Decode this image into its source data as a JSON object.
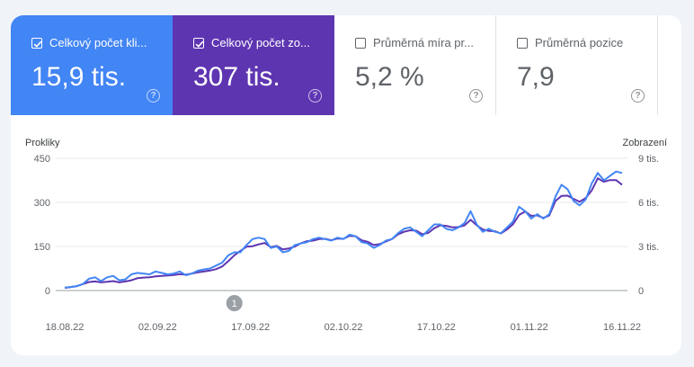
{
  "tiles": [
    {
      "label": "Celkový počet kli...",
      "value": "15,9 tis.",
      "checked": true,
      "color": "#4285f4"
    },
    {
      "label": "Celkový počet zo...",
      "value": "307 tis.",
      "checked": true,
      "color": "#5e35b1"
    },
    {
      "label": "Průměrná míra pr...",
      "value": "5,2 %",
      "checked": false
    },
    {
      "label": "Průměrná pozice",
      "value": "7,9",
      "checked": false
    }
  ],
  "help_glyph": "?",
  "annotation_label": "1",
  "chart_data": {
    "type": "line",
    "left_axis_label": "Prokliky",
    "right_axis_label": "Zobrazení",
    "left_ticks": [
      "450",
      "300",
      "150",
      "0"
    ],
    "right_ticks": [
      "9 tis.",
      "6 tis.",
      "3 tis.",
      "0"
    ],
    "x_tick_labels": [
      "18.08.22",
      "02.09.22",
      "17.09.22",
      "02.10.22",
      "17.10.22",
      "01.11.22",
      "16.11.22"
    ],
    "ylim_left": [
      0,
      450
    ],
    "ylim_right": [
      0,
      9000
    ],
    "grid": true,
    "series": [
      {
        "name": "Celkový počet kliknutí",
        "color": "#4285f4",
        "axis": "left",
        "values": [
          10,
          12,
          15,
          22,
          40,
          45,
          32,
          45,
          50,
          35,
          38,
          55,
          60,
          58,
          55,
          65,
          60,
          55,
          58,
          65,
          52,
          58,
          68,
          72,
          75,
          85,
          95,
          120,
          130,
          130,
          155,
          175,
          180,
          175,
          145,
          150,
          130,
          135,
          155,
          160,
          165,
          175,
          180,
          175,
          170,
          180,
          175,
          190,
          185,
          165,
          160,
          145,
          155,
          170,
          175,
          195,
          210,
          215,
          200,
          185,
          205,
          225,
          225,
          210,
          205,
          215,
          230,
          270,
          225,
          200,
          210,
          200,
          195,
          215,
          235,
          285,
          270,
          245,
          260,
          245,
          260,
          320,
          360,
          345,
          305,
          290,
          310,
          365,
          400,
          375,
          390,
          405,
          400
        ]
      },
      {
        "name": "Celkový počet zobrazení",
        "color": "#5e35b1",
        "axis": "right",
        "values": [
          180,
          240,
          300,
          440,
          580,
          620,
          560,
          600,
          640,
          560,
          620,
          700,
          840,
          880,
          900,
          960,
          1000,
          1020,
          1060,
          1120,
          1080,
          1160,
          1240,
          1300,
          1360,
          1460,
          1640,
          2000,
          2400,
          2700,
          2980,
          3020,
          3140,
          3240,
          2960,
          3040,
          2800,
          2860,
          3000,
          3220,
          3360,
          3400,
          3500,
          3520,
          3420,
          3540,
          3520,
          3720,
          3700,
          3420,
          3320,
          3100,
          3160,
          3340,
          3500,
          3820,
          4000,
          4100,
          4080,
          3840,
          3920,
          4240,
          4440,
          4400,
          4300,
          4320,
          4440,
          4820,
          4440,
          4160,
          4060,
          4040,
          3880,
          4160,
          4520,
          5140,
          5380,
          5080,
          5120,
          4940,
          5120,
          6100,
          6440,
          6460,
          6240,
          6040,
          6300,
          6820,
          7640,
          7400,
          7520,
          7520,
          7200
        ]
      }
    ],
    "annotation": {
      "label": "1",
      "x_index": 28
    }
  }
}
